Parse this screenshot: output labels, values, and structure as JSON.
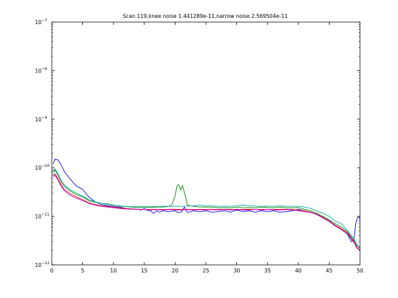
{
  "chart_data": {
    "type": "line",
    "title": "Scan 119,knee noise 1.441289e-11,narrow noise 2.569504e-11",
    "xlabel": "",
    "ylabel": "",
    "xlim": [
      0,
      50
    ],
    "ylim": [
      1e-12,
      1e-07
    ],
    "yscale": "log",
    "grid": false,
    "legend": "none",
    "x_ticks": [
      0,
      5,
      10,
      15,
      20,
      25,
      30,
      35,
      40,
      45,
      50
    ],
    "y_ticks": [
      {
        "value": 1e-12,
        "mantissa": "10",
        "exp": "−12"
      },
      {
        "value": 1e-11,
        "mantissa": "10",
        "exp": "−11"
      },
      {
        "value": 1e-10,
        "mantissa": "10",
        "exp": "−10"
      },
      {
        "value": 1e-09,
        "mantissa": "10",
        "exp": "−9"
      },
      {
        "value": 1e-08,
        "mantissa": "10",
        "exp": "−8"
      },
      {
        "value": 1e-07,
        "mantissa": "10",
        "exp": "−7"
      }
    ],
    "series": [
      {
        "color": "#0000cc",
        "points": [
          [
            0.2,
            1.2e-10
          ],
          [
            0.5,
            1.5e-10
          ],
          [
            1,
            1.45e-10
          ],
          [
            1.5,
            1.15e-10
          ],
          [
            2,
            8.5e-11
          ],
          [
            2.5,
            7e-11
          ],
          [
            3,
            5.8e-11
          ],
          [
            3.5,
            4.9e-11
          ],
          [
            4,
            4.2e-11
          ],
          [
            5,
            3.6e-11
          ],
          [
            6,
            2.5e-11
          ],
          [
            7,
            2e-11
          ],
          [
            8,
            1.75e-11
          ],
          [
            9,
            1.65e-11
          ],
          [
            10,
            1.6e-11
          ],
          [
            11,
            1.55e-11
          ],
          [
            12,
            1.45e-11
          ],
          [
            13,
            1.42e-11
          ],
          [
            14,
            1.4e-11
          ],
          [
            14.5,
            1.35e-11
          ],
          [
            15,
            1.45e-11
          ],
          [
            15.5,
            1.32e-11
          ],
          [
            16,
            1.3e-11
          ],
          [
            16.5,
            1.15e-11
          ],
          [
            17,
            1.3e-11
          ],
          [
            17.5,
            1.22e-11
          ],
          [
            18,
            1.3e-11
          ],
          [
            19,
            1.25e-11
          ],
          [
            20,
            1.3e-11
          ],
          [
            20.5,
            1.2e-11
          ],
          [
            21,
            1.22e-11
          ],
          [
            21.5,
            1.55e-11
          ],
          [
            22,
            1.2e-11
          ],
          [
            23,
            1.3e-11
          ],
          [
            24,
            1.25e-11
          ],
          [
            25,
            1.3e-11
          ],
          [
            26,
            1.22e-11
          ],
          [
            27,
            1.25e-11
          ],
          [
            28,
            1.3e-11
          ],
          [
            29,
            1.22e-11
          ],
          [
            30,
            1.35e-11
          ],
          [
            31,
            1.25e-11
          ],
          [
            32,
            1.3e-11
          ],
          [
            33,
            1.22e-11
          ],
          [
            34,
            1.3e-11
          ],
          [
            35,
            1.25e-11
          ],
          [
            36,
            1.3e-11
          ],
          [
            37,
            1.22e-11
          ],
          [
            38,
            1.25e-11
          ],
          [
            39,
            1.3e-11
          ],
          [
            40,
            1.4e-11
          ],
          [
            41,
            1.3e-11
          ],
          [
            42,
            1.2e-11
          ],
          [
            43,
            1.1e-11
          ],
          [
            44,
            9.5e-12
          ],
          [
            45,
            8e-12
          ],
          [
            46,
            6.5e-12
          ],
          [
            47,
            5.5e-12
          ],
          [
            48,
            4.2e-12
          ],
          [
            48.6,
            3e-12
          ],
          [
            49,
            3.2e-12
          ],
          [
            49.3,
            7e-12
          ],
          [
            49.6,
            9.5e-12
          ],
          [
            50,
            9.5e-12
          ]
        ]
      },
      {
        "color": "#008000",
        "points": [
          [
            0.2,
            8e-11
          ],
          [
            0.5,
            9e-11
          ],
          [
            1,
            7e-11
          ],
          [
            1.5,
            5.2e-11
          ],
          [
            2,
            4.2e-11
          ],
          [
            3,
            3.3e-11
          ],
          [
            4,
            2.8e-11
          ],
          [
            5,
            2.5e-11
          ],
          [
            6,
            2.1e-11
          ],
          [
            7,
            1.95e-11
          ],
          [
            8,
            1.85e-11
          ],
          [
            9,
            1.8e-11
          ],
          [
            10,
            1.72e-11
          ],
          [
            11,
            1.62e-11
          ],
          [
            12,
            1.58e-11
          ],
          [
            13,
            1.55e-11
          ],
          [
            14,
            1.52e-11
          ],
          [
            15,
            1.55e-11
          ],
          [
            16,
            1.52e-11
          ],
          [
            17,
            1.55e-11
          ],
          [
            18,
            1.55e-11
          ],
          [
            19,
            1.6e-11
          ],
          [
            19.5,
            1.75e-11
          ],
          [
            20,
            2.6e-11
          ],
          [
            20.3,
            4.2e-11
          ],
          [
            20.6,
            4.5e-11
          ],
          [
            20.9,
            3.5e-11
          ],
          [
            21.2,
            4.3e-11
          ],
          [
            21.6,
            2.8e-11
          ],
          [
            22,
            1.7e-11
          ],
          [
            23,
            1.6e-11
          ],
          [
            24,
            1.55e-11
          ],
          [
            25,
            1.55e-11
          ],
          [
            26,
            1.55e-11
          ],
          [
            27,
            1.5e-11
          ],
          [
            28,
            1.52e-11
          ],
          [
            29,
            1.5e-11
          ],
          [
            30,
            1.55e-11
          ],
          [
            31,
            1.5e-11
          ],
          [
            32,
            1.52e-11
          ],
          [
            33,
            1.5e-11
          ],
          [
            34,
            1.55e-11
          ],
          [
            35,
            1.52e-11
          ],
          [
            36,
            1.5e-11
          ],
          [
            37,
            1.55e-11
          ],
          [
            38,
            1.5e-11
          ],
          [
            39,
            1.5e-11
          ],
          [
            40,
            1.52e-11
          ],
          [
            41,
            1.4e-11
          ],
          [
            42,
            1.3e-11
          ],
          [
            43,
            1.15e-11
          ],
          [
            44,
            1e-11
          ],
          [
            45,
            8.5e-12
          ],
          [
            46,
            7e-12
          ],
          [
            47,
            6e-12
          ],
          [
            48,
            4.8e-12
          ],
          [
            49,
            3.2e-12
          ],
          [
            49.5,
            2.5e-12
          ],
          [
            50,
            2.2e-12
          ]
        ]
      },
      {
        "color": "#cc0000",
        "points": [
          [
            0.2,
            7e-11
          ],
          [
            0.5,
            7.5e-11
          ],
          [
            1,
            6e-11
          ],
          [
            1.5,
            4.5e-11
          ],
          [
            2,
            3.6e-11
          ],
          [
            3,
            2.9e-11
          ],
          [
            4,
            2.5e-11
          ],
          [
            5,
            2.2e-11
          ],
          [
            6,
            1.9e-11
          ],
          [
            7,
            1.75e-11
          ],
          [
            8,
            1.65e-11
          ],
          [
            9,
            1.6e-11
          ],
          [
            10,
            1.55e-11
          ],
          [
            11,
            1.5e-11
          ],
          [
            12,
            1.45e-11
          ],
          [
            13,
            1.42e-11
          ],
          [
            14,
            1.4e-11
          ],
          [
            15,
            1.4e-11
          ],
          [
            16,
            1.38e-11
          ],
          [
            17,
            1.4e-11
          ],
          [
            18,
            1.38e-11
          ],
          [
            19,
            1.4e-11
          ],
          [
            20,
            1.4e-11
          ],
          [
            21,
            1.38e-11
          ],
          [
            22,
            1.4e-11
          ],
          [
            23,
            1.38e-11
          ],
          [
            24,
            1.4e-11
          ],
          [
            25,
            1.38e-11
          ],
          [
            26,
            1.4e-11
          ],
          [
            27,
            1.38e-11
          ],
          [
            28,
            1.4e-11
          ],
          [
            29,
            1.38e-11
          ],
          [
            30,
            1.4e-11
          ],
          [
            31,
            1.38e-11
          ],
          [
            32,
            1.4e-11
          ],
          [
            33,
            1.38e-11
          ],
          [
            34,
            1.4e-11
          ],
          [
            35,
            1.38e-11
          ],
          [
            36,
            1.38e-11
          ],
          [
            37,
            1.4e-11
          ],
          [
            38,
            1.4e-11
          ],
          [
            39,
            1.38e-11
          ],
          [
            40,
            1.35e-11
          ],
          [
            41,
            1.3e-11
          ],
          [
            42,
            1.22e-11
          ],
          [
            43,
            1.1e-11
          ],
          [
            44,
            9.5e-12
          ],
          [
            45,
            8e-12
          ],
          [
            46,
            6.5e-12
          ],
          [
            47,
            5.5e-12
          ],
          [
            48,
            4.5e-12
          ],
          [
            49,
            3e-12
          ],
          [
            49.5,
            2.3e-12
          ],
          [
            50,
            2e-12
          ]
        ]
      },
      {
        "color": "#00aaaa",
        "points": [
          [
            0.2,
            8.5e-11
          ],
          [
            0.5,
            9.5e-11
          ],
          [
            1,
            7.5e-11
          ],
          [
            1.5,
            5.5e-11
          ],
          [
            2,
            4.5e-11
          ],
          [
            3,
            3.5e-11
          ],
          [
            4,
            3e-11
          ],
          [
            5,
            2.6e-11
          ],
          [
            6,
            2.2e-11
          ],
          [
            7,
            2e-11
          ],
          [
            8,
            1.85e-11
          ],
          [
            9,
            1.75e-11
          ],
          [
            10,
            1.7e-11
          ],
          [
            11,
            1.65e-11
          ],
          [
            12,
            1.6e-11
          ],
          [
            13,
            1.58e-11
          ],
          [
            14,
            1.6e-11
          ],
          [
            15,
            1.58e-11
          ],
          [
            16,
            1.6e-11
          ],
          [
            17,
            1.58e-11
          ],
          [
            18,
            1.62e-11
          ],
          [
            19,
            1.6e-11
          ],
          [
            20,
            1.62e-11
          ],
          [
            21,
            1.6e-11
          ],
          [
            22,
            1.62e-11
          ],
          [
            23,
            1.65e-11
          ],
          [
            24,
            1.7e-11
          ],
          [
            25,
            1.62e-11
          ],
          [
            26,
            1.65e-11
          ],
          [
            27,
            1.6e-11
          ],
          [
            28,
            1.62e-11
          ],
          [
            29,
            1.6e-11
          ],
          [
            30,
            1.65e-11
          ],
          [
            31,
            1.7e-11
          ],
          [
            32,
            1.65e-11
          ],
          [
            33,
            1.62e-11
          ],
          [
            34,
            1.6e-11
          ],
          [
            35,
            1.62e-11
          ],
          [
            36,
            1.6e-11
          ],
          [
            37,
            1.65e-11
          ],
          [
            38,
            1.6e-11
          ],
          [
            39,
            1.6e-11
          ],
          [
            40,
            1.62e-11
          ],
          [
            41,
            1.55e-11
          ],
          [
            42,
            1.45e-11
          ],
          [
            43,
            1.3e-11
          ],
          [
            44,
            1.15e-11
          ],
          [
            45,
            1e-11
          ],
          [
            46,
            8e-12
          ],
          [
            47,
            7e-12
          ],
          [
            48,
            5e-12
          ],
          [
            49,
            3.5e-12
          ],
          [
            49.5,
            2.6e-12
          ],
          [
            50,
            2.3e-12
          ]
        ]
      },
      {
        "color": "#cc00cc",
        "points": [
          [
            0.2,
            6.5e-11
          ],
          [
            0.5,
            7e-11
          ],
          [
            1,
            5.5e-11
          ],
          [
            1.5,
            4.2e-11
          ],
          [
            2,
            3.4e-11
          ],
          [
            3,
            2.7e-11
          ],
          [
            4,
            2.35e-11
          ],
          [
            5,
            2.1e-11
          ],
          [
            6,
            1.85e-11
          ],
          [
            7,
            1.7e-11
          ],
          [
            8,
            1.6e-11
          ],
          [
            9,
            1.55e-11
          ],
          [
            10,
            1.5e-11
          ],
          [
            11,
            1.45e-11
          ],
          [
            12,
            1.42e-11
          ],
          [
            13,
            1.4e-11
          ],
          [
            14,
            1.38e-11
          ],
          [
            15,
            1.4e-11
          ],
          [
            16,
            1.35e-11
          ],
          [
            17,
            1.38e-11
          ],
          [
            18,
            1.35e-11
          ],
          [
            19,
            1.38e-11
          ],
          [
            20,
            1.35e-11
          ],
          [
            21,
            1.35e-11
          ],
          [
            22,
            1.38e-11
          ],
          [
            23,
            1.35e-11
          ],
          [
            24,
            1.38e-11
          ],
          [
            25,
            1.35e-11
          ],
          [
            26,
            1.38e-11
          ],
          [
            27,
            1.35e-11
          ],
          [
            28,
            1.38e-11
          ],
          [
            29,
            1.35e-11
          ],
          [
            30,
            1.38e-11
          ],
          [
            31,
            1.35e-11
          ],
          [
            32,
            1.35e-11
          ],
          [
            33,
            1.38e-11
          ],
          [
            34,
            1.35e-11
          ],
          [
            35,
            1.38e-11
          ],
          [
            36,
            1.35e-11
          ],
          [
            37,
            1.35e-11
          ],
          [
            38,
            1.38e-11
          ],
          [
            39,
            1.35e-11
          ],
          [
            40,
            1.3e-11
          ],
          [
            41,
            1.25e-11
          ],
          [
            42,
            1.2e-11
          ],
          [
            43,
            1.08e-11
          ],
          [
            44,
            9.2e-12
          ],
          [
            45,
            7.8e-12
          ],
          [
            46,
            6.3e-12
          ],
          [
            47,
            5.3e-12
          ],
          [
            48,
            4.3e-12
          ],
          [
            49,
            2.9e-12
          ],
          [
            49.5,
            2.2e-12
          ],
          [
            50,
            2e-12
          ]
        ]
      }
    ]
  }
}
